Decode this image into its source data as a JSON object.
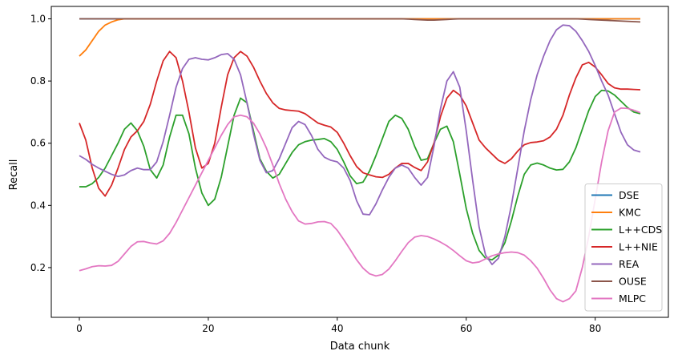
{
  "chart_data": {
    "type": "line",
    "title": "",
    "xlabel": "Data chunk",
    "ylabel": "Recall",
    "xlim": [
      -4.35,
      91.35
    ],
    "ylim": [
      0.04,
      1.04
    ],
    "xticks": [
      0,
      20,
      40,
      60,
      80
    ],
    "yticks": [
      0.2,
      0.4,
      0.6,
      0.8,
      1.0
    ],
    "ytick_labels": [
      "0.2",
      "0.4",
      "0.6",
      "0.8",
      "1.0"
    ],
    "grid": false,
    "legend_position": "lower right",
    "x": [
      0,
      1,
      2,
      3,
      4,
      5,
      6,
      7,
      8,
      9,
      10,
      11,
      12,
      13,
      14,
      15,
      16,
      17,
      18,
      19,
      20,
      21,
      22,
      23,
      24,
      25,
      26,
      27,
      28,
      29,
      30,
      31,
      32,
      33,
      34,
      35,
      36,
      37,
      38,
      39,
      40,
      41,
      42,
      43,
      44,
      45,
      46,
      47,
      48,
      49,
      50,
      51,
      52,
      53,
      54,
      55,
      56,
      57,
      58,
      59,
      60,
      61,
      62,
      63,
      64,
      65,
      66,
      67,
      68,
      69,
      70,
      71,
      72,
      73,
      74,
      75,
      76,
      77,
      78,
      79,
      80,
      81,
      82,
      83,
      84,
      85,
      86,
      87
    ],
    "series": [
      {
        "name": "DSE",
        "color": "#1f77b4",
        "values": [
          1.0,
          1.0,
          1.0,
          1.0,
          1.0,
          1.0,
          1.0,
          1.0,
          1.0,
          1.0,
          1.0,
          1.0,
          1.0,
          1.0,
          1.0,
          1.0,
          1.0,
          1.0,
          1.0,
          1.0,
          1.0,
          1.0,
          1.0,
          1.0,
          1.0,
          1.0,
          1.0,
          1.0,
          1.0,
          1.0,
          1.0,
          1.0,
          1.0,
          1.0,
          1.0,
          1.0,
          1.0,
          1.0,
          1.0,
          1.0,
          1.0,
          1.0,
          1.0,
          1.0,
          1.0,
          1.0,
          1.0,
          1.0,
          1.0,
          1.0,
          1.0,
          1.0,
          1.0,
          1.0,
          1.0,
          1.0,
          1.0,
          1.0,
          1.0,
          1.0,
          1.0,
          1.0,
          1.0,
          1.0,
          1.0,
          1.0,
          1.0,
          1.0,
          1.0,
          1.0,
          1.0,
          1.0,
          1.0,
          1.0,
          1.0,
          1.0,
          1.0,
          1.0,
          1.0,
          1.0,
          1.0,
          1.0,
          1.0,
          1.0,
          1.0,
          1.0,
          1.0,
          1.0
        ]
      },
      {
        "name": "KMC",
        "color": "#ff7f0e",
        "values": [
          0.88,
          0.9,
          0.93,
          0.96,
          0.98,
          0.99,
          0.997,
          1.0,
          1.0,
          1.0,
          1.0,
          1.0,
          1.0,
          1.0,
          1.0,
          1.0,
          1.0,
          1.0,
          1.0,
          1.0,
          1.0,
          1.0,
          1.0,
          1.0,
          1.0,
          1.0,
          1.0,
          1.0,
          1.0,
          1.0,
          1.0,
          1.0,
          1.0,
          1.0,
          1.0,
          1.0,
          1.0,
          1.0,
          1.0,
          1.0,
          1.0,
          1.0,
          1.0,
          1.0,
          1.0,
          1.0,
          1.0,
          1.0,
          1.0,
          1.0,
          1.0,
          1.0,
          1.0,
          1.0,
          1.0,
          1.0,
          1.0,
          1.0,
          1.0,
          1.0,
          1.0,
          1.0,
          1.0,
          1.0,
          1.0,
          1.0,
          1.0,
          1.0,
          1.0,
          1.0,
          1.0,
          1.0,
          1.0,
          1.0,
          1.0,
          1.0,
          1.0,
          1.0,
          1.0,
          1.0,
          1.0,
          1.0,
          1.0,
          1.0,
          1.0,
          1.0,
          1.0,
          1.0
        ]
      },
      {
        "name": "L++CDS",
        "color": "#2ca02c",
        "values": [
          0.46,
          0.46,
          0.47,
          0.49,
          0.52,
          0.56,
          0.6,
          0.645,
          0.665,
          0.64,
          0.59,
          0.515,
          0.488,
          0.53,
          0.62,
          0.69,
          0.69,
          0.63,
          0.52,
          0.44,
          0.4,
          0.42,
          0.49,
          0.59,
          0.69,
          0.745,
          0.73,
          0.64,
          0.55,
          0.51,
          0.488,
          0.5,
          0.535,
          0.57,
          0.595,
          0.605,
          0.61,
          0.612,
          0.615,
          0.605,
          0.58,
          0.54,
          0.495,
          0.47,
          0.475,
          0.51,
          0.56,
          0.615,
          0.67,
          0.69,
          0.68,
          0.645,
          0.59,
          0.545,
          0.55,
          0.6,
          0.645,
          0.655,
          0.605,
          0.5,
          0.39,
          0.31,
          0.255,
          0.23,
          0.225,
          0.24,
          0.28,
          0.35,
          0.43,
          0.5,
          0.53,
          0.536,
          0.53,
          0.52,
          0.514,
          0.516,
          0.54,
          0.585,
          0.645,
          0.705,
          0.75,
          0.77,
          0.768,
          0.755,
          0.735,
          0.715,
          0.7,
          0.695
        ]
      },
      {
        "name": "L++NIE",
        "color": "#d62728",
        "values": [
          0.665,
          0.61,
          0.52,
          0.455,
          0.43,
          0.465,
          0.52,
          0.58,
          0.62,
          0.64,
          0.67,
          0.725,
          0.8,
          0.865,
          0.895,
          0.875,
          0.8,
          0.7,
          0.585,
          0.52,
          0.535,
          0.6,
          0.715,
          0.82,
          0.875,
          0.895,
          0.88,
          0.845,
          0.8,
          0.76,
          0.73,
          0.712,
          0.707,
          0.705,
          0.703,
          0.695,
          0.68,
          0.665,
          0.658,
          0.652,
          0.635,
          0.6,
          0.56,
          0.525,
          0.505,
          0.498,
          0.492,
          0.49,
          0.5,
          0.52,
          0.535,
          0.535,
          0.522,
          0.512,
          0.54,
          0.6,
          0.685,
          0.745,
          0.77,
          0.755,
          0.72,
          0.665,
          0.61,
          0.585,
          0.565,
          0.545,
          0.535,
          0.55,
          0.575,
          0.595,
          0.602,
          0.604,
          0.608,
          0.62,
          0.645,
          0.69,
          0.755,
          0.81,
          0.852,
          0.86,
          0.845,
          0.82,
          0.792,
          0.778,
          0.774,
          0.774,
          0.773,
          0.772
        ]
      },
      {
        "name": "REA",
        "color": "#9467bd",
        "values": [
          0.56,
          0.548,
          0.532,
          0.52,
          0.51,
          0.5,
          0.493,
          0.498,
          0.512,
          0.52,
          0.515,
          0.515,
          0.54,
          0.605,
          0.69,
          0.78,
          0.84,
          0.87,
          0.875,
          0.87,
          0.868,
          0.875,
          0.885,
          0.888,
          0.87,
          0.82,
          0.73,
          0.63,
          0.545,
          0.505,
          0.512,
          0.55,
          0.6,
          0.65,
          0.67,
          0.66,
          0.625,
          0.58,
          0.555,
          0.545,
          0.54,
          0.52,
          0.48,
          0.415,
          0.372,
          0.37,
          0.405,
          0.45,
          0.49,
          0.52,
          0.53,
          0.52,
          0.49,
          0.465,
          0.49,
          0.59,
          0.71,
          0.8,
          0.83,
          0.78,
          0.64,
          0.48,
          0.33,
          0.24,
          0.21,
          0.23,
          0.3,
          0.4,
          0.52,
          0.64,
          0.74,
          0.82,
          0.88,
          0.93,
          0.965,
          0.98,
          0.978,
          0.96,
          0.93,
          0.895,
          0.85,
          0.8,
          0.755,
          0.695,
          0.635,
          0.595,
          0.578,
          0.572
        ]
      },
      {
        "name": "OUSE",
        "color": "#8c564b",
        "values": [
          1.0,
          1.0,
          1.0,
          1.0,
          1.0,
          1.0,
          1.0,
          1.0,
          1.0,
          1.0,
          1.0,
          1.0,
          1.0,
          1.0,
          1.0,
          1.0,
          1.0,
          1.0,
          1.0,
          1.0,
          1.0,
          1.0,
          1.0,
          1.0,
          1.0,
          1.0,
          1.0,
          1.0,
          1.0,
          1.0,
          1.0,
          1.0,
          1.0,
          1.0,
          1.0,
          1.0,
          1.0,
          1.0,
          1.0,
          1.0,
          1.0,
          1.0,
          1.0,
          1.0,
          1.0,
          1.0,
          1.0,
          1.0,
          1.0,
          1.0,
          1.0,
          0.999,
          0.998,
          0.997,
          0.996,
          0.996,
          0.997,
          0.998,
          0.999,
          1.0,
          1.0,
          1.0,
          1.0,
          1.0,
          1.0,
          1.0,
          1.0,
          1.0,
          1.0,
          1.0,
          1.0,
          1.0,
          1.0,
          1.0,
          1.0,
          1.0,
          1.0,
          1.0,
          0.999,
          0.998,
          0.997,
          0.996,
          0.995,
          0.994,
          0.993,
          0.992,
          0.991,
          0.99
        ]
      },
      {
        "name": "MLPC",
        "color": "#e377c2",
        "values": [
          0.19,
          0.196,
          0.203,
          0.206,
          0.205,
          0.207,
          0.22,
          0.244,
          0.268,
          0.283,
          0.284,
          0.279,
          0.276,
          0.286,
          0.31,
          0.345,
          0.385,
          0.425,
          0.465,
          0.505,
          0.545,
          0.585,
          0.625,
          0.66,
          0.685,
          0.69,
          0.685,
          0.665,
          0.63,
          0.585,
          0.53,
          0.47,
          0.42,
          0.38,
          0.35,
          0.34,
          0.342,
          0.347,
          0.348,
          0.342,
          0.32,
          0.29,
          0.258,
          0.225,
          0.198,
          0.18,
          0.173,
          0.178,
          0.195,
          0.222,
          0.252,
          0.28,
          0.298,
          0.303,
          0.3,
          0.292,
          0.282,
          0.27,
          0.255,
          0.238,
          0.222,
          0.215,
          0.218,
          0.228,
          0.238,
          0.244,
          0.248,
          0.25,
          0.248,
          0.24,
          0.222,
          0.198,
          0.165,
          0.128,
          0.1,
          0.09,
          0.1,
          0.125,
          0.2,
          0.3,
          0.42,
          0.54,
          0.64,
          0.7,
          0.713,
          0.712,
          0.706,
          0.698
        ]
      }
    ]
  }
}
